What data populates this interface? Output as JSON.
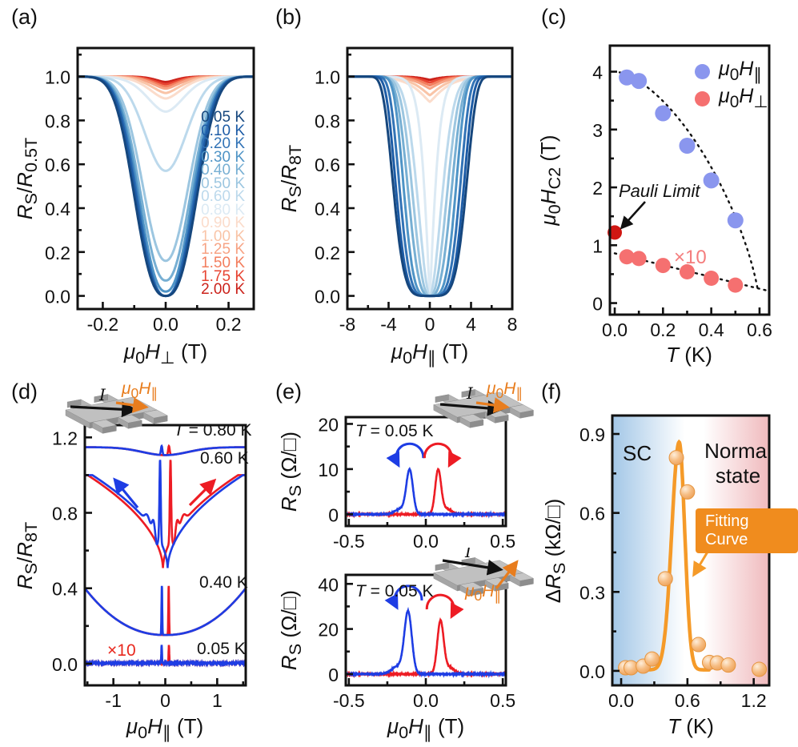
{
  "panels": {
    "a": {
      "tag": "(a)",
      "ylabel": "<i>R</i><sub>S</sub>/<i>R</i><sub>0.5T</sub>",
      "xlabel": "<i>μ</i><sub>0</sub><i>H</i><sub>⊥</sub> (T)"
    },
    "b": {
      "tag": "(b)",
      "ylabel": "<i>R</i><sub>S</sub>/<i>R</i><sub>8T</sub>",
      "xlabel": "<i>μ</i><sub>0</sub><i>H</i><sub>∥</sub> (T)"
    },
    "c": {
      "tag": "(c)",
      "ylabel": "<i>μ</i><sub>0</sub><i>H</i><sub>C2</sub> (T)",
      "xlabel": "<i>T</i> (K)",
      "legend": [
        {
          "label": "<i>μ</i><sub>0</sub><i>H</i><sub>∥</sub>",
          "color": "#8a96ee"
        },
        {
          "label": "<i>μ</i><sub>0</sub><i>H</i><sub>⊥</sub>",
          "color": "#f57070"
        }
      ],
      "pauli_label": "Pauli Limit",
      "x10_label": "×10"
    },
    "d": {
      "tag": "(d)",
      "ylabel": "<i>R</i><sub>S</sub>/<i>R</i><sub>8T</sub>",
      "xlabel": "<i>μ</i><sub>0</sub><i>H</i><sub>∥</sub> (T)",
      "curve_labels": [
        "<i>T</i> = 0.80 K",
        "0.60 K",
        "0.40 K",
        "0.05 K"
      ],
      "x10_label": "×10",
      "schematic": {
        "current_label": "I",
        "field_label": "<i>μ</i><sub>0</sub><i>H</i><sub>∥</sub>"
      }
    },
    "e": {
      "tag": "(e)",
      "xlabel": "<i>μ</i><sub>0</sub><i>H</i><sub>∥</sub> (T)",
      "top": {
        "temp_label": "<i>T</i> = 0.05 K",
        "ylabel": "<i>R</i><sub>S</sub> (Ω/□)",
        "current_label": "I",
        "field_label": "<i>μ</i><sub>0</sub><i>H</i><sub>∥</sub>"
      },
      "bottom": {
        "temp_label": "<i>T</i> = 0.05 K",
        "ylabel": "<i>R</i><sub>S</sub> (Ω/□)",
        "current_label": "I",
        "field_label": "<i>μ</i><sub>0</sub><i>H</i><sub>∥</sub>"
      }
    },
    "f": {
      "tag": "(f)",
      "ylabel": "Δ<i>R</i><sub>S</sub> (kΩ/□)",
      "xlabel": "<i>T</i> (K)",
      "region_left": "SC",
      "region_right": "Normal state",
      "fit_label": "Fitting Curve"
    }
  },
  "chart_data": [
    {
      "id": "a",
      "type": "line",
      "title": "",
      "xlabel": "μ0H⊥ (T)",
      "ylabel": "RS/R0.5T",
      "xlim": [
        -0.28,
        0.28
      ],
      "ylim": [
        -0.06,
        1.13
      ],
      "xticks": [
        -0.2,
        0.0,
        0.2
      ],
      "xtick_labels": [
        "-0.2",
        "0.0",
        "0.2"
      ],
      "yticks": [
        0.0,
        0.2,
        0.4,
        0.6,
        0.8,
        1.0
      ],
      "ytick_labels": [
        "0.0",
        "0.2",
        "0.4",
        "0.6",
        "0.8",
        "1.0"
      ],
      "legend_position": "inside right",
      "series_note": "normalized sheet resistance dips vs perpendicular field; rmin = value at H=0, half_width in T",
      "series": [
        {
          "label": "0.05 K",
          "color": "#16477e",
          "rmin": 0.0,
          "half_width": 0.105,
          "shape_p": 2.6
        },
        {
          "label": "0.10 K",
          "color": "#1d5ca6",
          "rmin": 0.0,
          "half_width": 0.1,
          "shape_p": 2.5
        },
        {
          "label": "0.20 K",
          "color": "#3273b6",
          "rmin": 0.0,
          "half_width": 0.096,
          "shape_p": 2.4
        },
        {
          "label": "0.30 K",
          "color": "#4f94c6",
          "rmin": 0.02,
          "half_width": 0.092,
          "shape_p": 2.3
        },
        {
          "label": "0.40 K",
          "color": "#77afd3",
          "rmin": 0.07,
          "half_width": 0.088,
          "shape_p": 2.2
        },
        {
          "label": "0.50 K",
          "color": "#9cc6e0",
          "rmin": 0.16,
          "half_width": 0.083,
          "shape_p": 2.1
        },
        {
          "label": "0.60 K",
          "color": "#bcd9ec",
          "rmin": 0.57,
          "half_width": 0.077,
          "shape_p": 2.0
        },
        {
          "label": "0.80 K",
          "color": "#dceaf4",
          "rmin": 0.84,
          "half_width": 0.068,
          "shape_p": 1.8
        },
        {
          "label": "0.90 K",
          "color": "#fbdccb",
          "rmin": 0.9,
          "half_width": 0.06,
          "shape_p": 1.7
        },
        {
          "label": "1.00 K",
          "color": "#f9c4a7",
          "rmin": 0.925,
          "half_width": 0.055,
          "shape_p": 1.6
        },
        {
          "label": "1.25 K",
          "color": "#f7a384",
          "rmin": 0.945,
          "half_width": 0.05,
          "shape_p": 1.6
        },
        {
          "label": "1.50 K",
          "color": "#f37e5e",
          "rmin": 0.955,
          "half_width": 0.046,
          "shape_p": 1.6
        },
        {
          "label": "1.75 K",
          "color": "#e74331",
          "rmin": 0.965,
          "half_width": 0.042,
          "shape_p": 1.6
        },
        {
          "label": "2.00 K",
          "color": "#cb211a",
          "rmin": 0.975,
          "half_width": 0.038,
          "shape_p": 1.6
        }
      ]
    },
    {
      "id": "b",
      "type": "line",
      "title": "",
      "xlabel": "μ0H∥ (T)",
      "ylabel": "RS/R8T",
      "xlim": [
        -8,
        8
      ],
      "ylim": [
        -0.06,
        1.13
      ],
      "xticks": [
        -8,
        -4,
        0,
        4,
        8
      ],
      "xtick_labels": [
        "-8",
        "-4",
        "0",
        "4",
        "8"
      ],
      "yticks": [
        0.0,
        0.2,
        0.4,
        0.6,
        0.8,
        1.0
      ],
      "ytick_labels": [
        "0.0",
        "0.2",
        "0.4",
        "0.6",
        "0.8",
        "1.0"
      ],
      "series": [
        {
          "label": "0.05 K",
          "color": "#16477e",
          "rmin": 0.0,
          "half_width": 3.55,
          "shape_p": 5
        },
        {
          "label": "0.10 K",
          "color": "#1d5ca6",
          "rmin": 0.0,
          "half_width": 3.3,
          "shape_p": 5
        },
        {
          "label": "0.20 K",
          "color": "#3273b6",
          "rmin": 0.0,
          "half_width": 2.95,
          "shape_p": 4.5
        },
        {
          "label": "0.30 K",
          "color": "#4f94c6",
          "rmin": 0.0,
          "half_width": 2.55,
          "shape_p": 4
        },
        {
          "label": "0.40 K",
          "color": "#77afd3",
          "rmin": 0.0,
          "half_width": 2.15,
          "shape_p": 3
        },
        {
          "label": "0.50 K",
          "color": "#9cc6e0",
          "rmin": 0.0,
          "half_width": 1.75,
          "shape_p": 2.4
        },
        {
          "label": "0.60 K",
          "color": "#bcd9ec",
          "rmin": 0.0,
          "half_width": 1.3,
          "shape_p": 1.8
        },
        {
          "label": "0.80 K",
          "color": "#dceaf4",
          "rmin": 0.0,
          "half_width": 0.55,
          "shape_p": 1.2
        },
        {
          "label": "0.90 K",
          "color": "#fbdccb",
          "rmin": 0.885,
          "half_width": 1.3,
          "shape_p": 1.2
        },
        {
          "label": "1.00 K",
          "color": "#f9c4a7",
          "rmin": 0.915,
          "half_width": 1.2,
          "shape_p": 1.2
        },
        {
          "label": "1.25 K",
          "color": "#f7a384",
          "rmin": 0.945,
          "half_width": 1.1,
          "shape_p": 1.2
        },
        {
          "label": "1.50 K",
          "color": "#f37e5e",
          "rmin": 0.96,
          "half_width": 1.0,
          "shape_p": 1.2
        },
        {
          "label": "1.75 K",
          "color": "#e74331",
          "rmin": 0.973,
          "half_width": 0.9,
          "shape_p": 1.2
        },
        {
          "label": "2.00 K",
          "color": "#cb211a",
          "rmin": 0.985,
          "half_width": 0.8,
          "shape_p": 1.2
        }
      ]
    },
    {
      "id": "c",
      "type": "scatter",
      "title": "",
      "xlabel": "T (K)",
      "ylabel": "μ0HC2 (T)",
      "xlim": [
        -0.02,
        0.64
      ],
      "ylim": [
        -0.2,
        4.45
      ],
      "xticks": [
        0.0,
        0.2,
        0.4,
        0.6
      ],
      "xtick_labels": [
        "0.0",
        "0.2",
        "0.4",
        "0.6"
      ],
      "yticks": [
        0,
        1,
        2,
        3,
        4
      ],
      "ytick_labels": [
        "0",
        "1",
        "2",
        "3",
        "4"
      ],
      "series": [
        {
          "name": "μ0H∥",
          "color": "#8a96ee",
          "marker_r": 10,
          "x": [
            0.05,
            0.1,
            0.2,
            0.3,
            0.4,
            0.5
          ],
          "y": [
            3.9,
            3.84,
            3.28,
            2.72,
            2.12,
            1.43
          ]
        },
        {
          "name": "μ0H⊥ (×10)",
          "color": "#f57070",
          "marker_r": 9.5,
          "x": [
            0.05,
            0.1,
            0.2,
            0.3,
            0.4,
            0.5
          ],
          "y": [
            0.8,
            0.77,
            0.65,
            0.54,
            0.43,
            0.31
          ]
        }
      ],
      "pauli_point": {
        "x": 0.0,
        "y": 1.22,
        "color": "#d01712",
        "label": "Pauli Limit"
      },
      "fits": [
        {
          "name": "parallel dotted fit",
          "H0": 4.0,
          "Tc": 0.6,
          "p1": 1.6,
          "p2": 0.72,
          "range": [
            0.02,
            0.595
          ]
        },
        {
          "name": "perpendicular dotted fit",
          "intercept": 0.86,
          "slope": -1.02,
          "range": [
            0.0,
            0.645
          ]
        }
      ]
    },
    {
      "id": "d",
      "type": "line",
      "title": "",
      "xlabel": "μ0H∥ (T)",
      "ylabel": "RS/R8T",
      "xlim": [
        -1.55,
        1.55
      ],
      "ylim": [
        -0.115,
        1.265
      ],
      "xticks": [
        -1,
        0,
        1
      ],
      "xtick_labels": [
        "-1",
        "0",
        "1"
      ],
      "yticks": [
        0.0,
        0.4,
        0.8,
        1.2
      ],
      "ytick_labels": [
        "0.0",
        "0.4",
        "0.8",
        "1.2"
      ],
      "sweep_colors": {
        "down_sweep": "#1e3de4",
        "up_sweep": "#ed1c24"
      },
      "sets": [
        {
          "label": "T = 0.80 K",
          "shape": "dip",
          "base_level": 1.148,
          "dip_depth": 0.042,
          "dip_width": 0.62,
          "spike_height": 0.048,
          "spike_pos": 0.07,
          "spike_width": 0.02
        },
        {
          "label": "0.60 K",
          "shape": "vee",
          "edge_level": 1.0,
          "center_level": 0.5,
          "hyst_shift": 0.045,
          "spike_height": 0.43,
          "spike_pos": 0.1,
          "spike_width": 0.018
        },
        {
          "label": "0.40 K",
          "shape": "parab",
          "center_level": 0.152,
          "edge_level": 0.4,
          "spike_height": 0.26,
          "spike_pos": 0.066,
          "spike_width": 0.01
        },
        {
          "label": "0.05 K",
          "shape": "flat",
          "center_level": 0.003,
          "spike_height": 0.095,
          "spike_pos": 0.07,
          "spike_width": 0.009,
          "note": "×10"
        }
      ]
    },
    {
      "id": "e1",
      "type": "line",
      "title": "",
      "temp": "T = 0.05 K",
      "xlabel": "μ0H∥ (T)",
      "ylabel": "RS (Ω/□)",
      "xlim": [
        -0.52,
        0.52
      ],
      "ylim": [
        -2.6,
        21.5
      ],
      "xticks": [
        -0.5,
        0.0,
        0.5
      ],
      "xtick_labels": [
        "-0.5",
        "0.0",
        "0.5"
      ],
      "yticks": [
        0,
        10,
        20
      ],
      "ytick_labels": [
        "0",
        "10",
        "20"
      ],
      "peaks": [
        {
          "name": "down-sweep",
          "color": "#1e3de4",
          "center": -0.105,
          "height": 9.6,
          "width": 0.03
        },
        {
          "name": "up-sweep",
          "color": "#ed1c24",
          "center": 0.08,
          "height": 9.6,
          "width": 0.027
        }
      ]
    },
    {
      "id": "e2",
      "type": "line",
      "title": "",
      "temp": "T = 0.05 K",
      "xlabel": "μ0H∥ (T)",
      "ylabel": "RS (Ω/□)",
      "xlim": [
        -0.52,
        0.52
      ],
      "ylim": [
        -5,
        44
      ],
      "xticks": [
        -0.5,
        0.0,
        0.5
      ],
      "xtick_labels": [
        "-0.5",
        "0.0",
        "0.5"
      ],
      "yticks": [
        0,
        20,
        40
      ],
      "ytick_labels": [
        "0",
        "20",
        "40"
      ],
      "peaks": [
        {
          "name": "down-sweep",
          "color": "#1e3de4",
          "center": -0.115,
          "height": 27,
          "width": 0.034
        },
        {
          "name": "up-sweep",
          "color": "#ed1c24",
          "center": 0.095,
          "height": 23,
          "width": 0.029
        }
      ]
    },
    {
      "id": "f",
      "type": "scatter+line",
      "title": "",
      "xlabel": "T (K)",
      "ylabel": "ΔRS (kΩ/□)",
      "xlim": [
        -0.08,
        1.34
      ],
      "ylim": [
        -0.055,
        0.97
      ],
      "xticks": [
        0.0,
        0.6,
        1.2
      ],
      "xtick_labels": [
        "0.0",
        "0.6",
        "1.2"
      ],
      "yticks": [
        0.0,
        0.3,
        0.6,
        0.9
      ],
      "ytick_labels": [
        "0.0",
        "0.3",
        "0.6",
        "0.9"
      ],
      "point_color": "#f3a85c",
      "curve_color": "#f59a28",
      "points": {
        "x": [
          0.04,
          0.09,
          0.2,
          0.28,
          0.4,
          0.5,
          0.6,
          0.7,
          0.8,
          0.87,
          0.97,
          1.25
        ],
        "y": [
          0.012,
          0.012,
          0.018,
          0.045,
          0.35,
          0.81,
          0.68,
          0.1,
          0.032,
          0.03,
          0.022,
          0.006
        ]
      },
      "fit": {
        "peak_T": 0.525,
        "peak_height": 0.865,
        "sigma_left": 0.095,
        "sigma_right": 0.072,
        "range": [
          0.22,
          0.8
        ]
      },
      "background": {
        "left_color": "#a3c7e7",
        "mid_color": "#ffffff",
        "right_color": "#f0babd"
      },
      "regions": [
        "SC",
        "Normal state"
      ]
    }
  ]
}
